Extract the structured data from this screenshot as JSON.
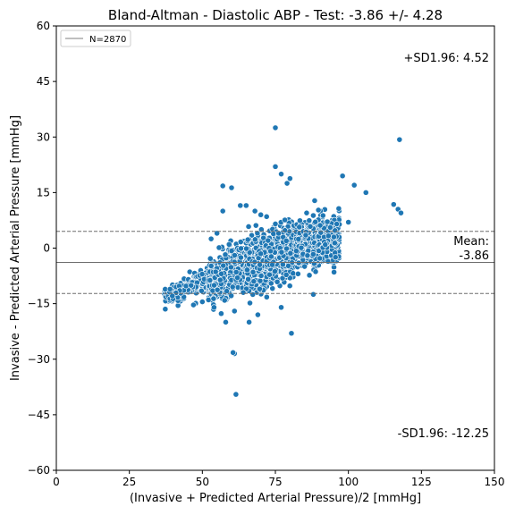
{
  "chart_data": {
    "type": "scatter",
    "title": "Bland-Altman - Diastolic ABP - Test: -3.86 +/- 4.28",
    "xlabel": "(Invasive + Predicted Arterial Pressure)/2 [mmHg]",
    "ylabel": "Invasive - Predicted Arterial Pressure [mmHg]",
    "xlim": [
      0,
      150
    ],
    "ylim": [
      -60,
      60
    ],
    "xticks": [
      0,
      25,
      50,
      75,
      100,
      125,
      150
    ],
    "yticks": [
      -60,
      -45,
      -30,
      -15,
      0,
      15,
      30,
      45,
      60
    ],
    "xtick_labels": [
      "0",
      "25",
      "50",
      "75",
      "100",
      "125",
      "150"
    ],
    "ytick_labels": [
      "−60",
      "−45",
      "−30",
      "−15",
      "0",
      "15",
      "30",
      "45",
      "60"
    ],
    "grid": false,
    "legend": {
      "placement": "top-left",
      "label": "N=2870"
    },
    "point_color": "#1f77b4",
    "mean": -3.86,
    "upper_sd": 4.52,
    "lower_sd": -12.25,
    "annotations": {
      "upper": "+SD1.96: 4.52",
      "mean_title": "Mean:",
      "mean_value": "-3.86",
      "lower": "-SD1.96: -12.25"
    },
    "outliers": [
      [
        75,
        32.5
      ],
      [
        117.5,
        29.3
      ],
      [
        75,
        22
      ],
      [
        77,
        20
      ],
      [
        79,
        17.5
      ],
      [
        80,
        18.8
      ],
      [
        57,
        16.8
      ],
      [
        60,
        16.3
      ],
      [
        98,
        19.5
      ],
      [
        102,
        17
      ],
      [
        106,
        15
      ],
      [
        115.5,
        11.8
      ],
      [
        117,
        10.5
      ],
      [
        118,
        9.5
      ],
      [
        63,
        11.5
      ],
      [
        65,
        11.5
      ],
      [
        68,
        10
      ],
      [
        70,
        9
      ],
      [
        72,
        8.5
      ],
      [
        55,
        4
      ],
      [
        57,
        10
      ],
      [
        53,
        2.5
      ],
      [
        100,
        7
      ],
      [
        96,
        6.5
      ],
      [
        61,
        -28.5
      ],
      [
        60.5,
        -28.2
      ],
      [
        61.5,
        -39.5
      ],
      [
        80.5,
        -23
      ],
      [
        77,
        -16
      ],
      [
        88,
        -12.5
      ],
      [
        58,
        -20
      ],
      [
        61,
        -17
      ],
      [
        66,
        -20
      ],
      [
        69,
        -18
      ],
      [
        54,
        -16
      ],
      [
        50,
        -14.5
      ],
      [
        83,
        -4
      ],
      [
        86,
        -2
      ],
      [
        62,
        -8
      ],
      [
        64,
        -12
      ]
    ],
    "clusters": [
      {
        "x_range": [
          37,
          52
        ],
        "center_slope": 0.31,
        "center_at_x": [
          45,
          -10.5
        ],
        "spread": 1.3,
        "count": 240
      },
      {
        "x_range": [
          52,
          65
        ],
        "center_slope": 0.42,
        "center_at_x": [
          58,
          -7
        ],
        "spread": 2.6,
        "count": 700
      },
      {
        "x_range": [
          65,
          82
        ],
        "center_slope": 0.42,
        "center_at_x": [
          73,
          -2.5
        ],
        "spread": 3.3,
        "count": 1200
      },
      {
        "x_range": [
          82,
          97
        ],
        "center_slope": 0.1,
        "center_at_x": [
          88,
          1.5
        ],
        "spread": 3.0,
        "count": 650
      }
    ]
  }
}
